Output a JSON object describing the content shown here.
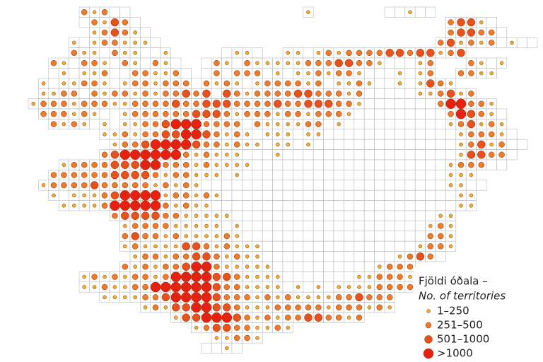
{
  "legend": {
    "title": "Fjöldi óðala –",
    "subtitle": "No. of territories",
    "classes": [
      {
        "label": "1–250",
        "color": "#f6a92a"
      },
      {
        "label": "251–500",
        "color": "#f07a2a"
      },
      {
        "label": "501–1000",
        "color": "#e8501c"
      },
      {
        "label": ">1000",
        "color": "#e8200f"
      }
    ]
  },
  "grid": {
    "rows": [
      ".....21200.................1.......00100........",
      ".....021320..............................23310......",
      "......123210.............................233220......",
      "....101221110...........................2312120100",
      "....2110211001.....0110..110121222233233123",
      "..2102210210210..02102111112223322100012...2101",
      "..01011200221120.02022201011212210001012..2211",
      ".10112210122122202121012222120112100101321",
      ".1122021221212232303212222332221200000112312",
      "1222122211222232233322223223332210000000244221",
      ".2221210.12222223332122212212221000000000243210",
      "..212101.11223444222202111122010000000000123121",
      ".......11212233443212101110110000000000000122210",
      "........12234444322121101101000000000000001231200",
      ".......23444444212111000100000000000000000133220",
      "...12222333442221211110000000000000000000122200",
      "..222222333321221110100000000000000000000111",
      ".12222322222121210000000000000000000000001100",
      "..1.1112344441221210000000000000000000000011",
      "...11112444442121100000000000000000000000011",
      "........2333322111110000000000000000000011",
      ".........122221111101000000000000000000121",
      ".........232212111121000000000000000000221",
      ".........121111332121110000000000000001221",
      "..........1221223321211000000000000012320",
      ".........21212234421111100000000001222",
      ".....1212122124444332111100000001122210",
      ".....1121122444444322111101010111122221",
      ".......11112234444322212121111223222",
      "...........1213344332111222221222121",
      "..............1334443212122332212",
      "................1233221121",
      "..................11221",
      ".................0010"
    ]
  }
}
